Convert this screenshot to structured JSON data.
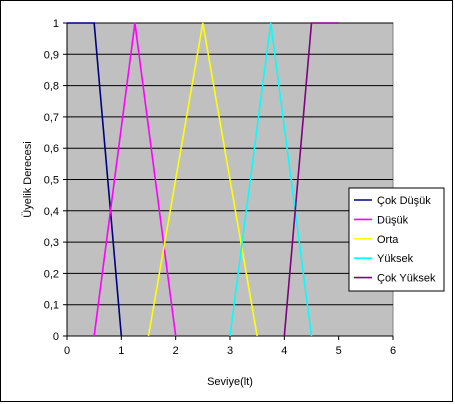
{
  "chart_data": {
    "type": "line",
    "title": "",
    "xlabel": "Seviye(lt)",
    "ylabel": "Üyelik Derecesi",
    "xlim": [
      0,
      6
    ],
    "ylim": [
      0,
      1
    ],
    "x_ticks": [
      "0",
      "1",
      "2",
      "3",
      "4",
      "5",
      "6"
    ],
    "y_ticks": [
      "0",
      "0,1",
      "0,2",
      "0,3",
      "0,4",
      "0,5",
      "0,6",
      "0,7",
      "0,8",
      "0,9",
      "1"
    ],
    "grid": "horizontal",
    "plot_background": "#c0c0c0",
    "legend_position": "right",
    "series": [
      {
        "name": "Çok Düşük",
        "color": "#000080",
        "x": [
          0,
          0.5,
          1.0
        ],
        "y": [
          1,
          1,
          0
        ]
      },
      {
        "name": "Düşük",
        "color": "#ff00ff",
        "x": [
          0.5,
          1.25,
          2.0
        ],
        "y": [
          0,
          1,
          0
        ]
      },
      {
        "name": "Orta",
        "color": "#ffff00",
        "x": [
          1.5,
          2.5,
          3.5
        ],
        "y": [
          0,
          1,
          0
        ]
      },
      {
        "name": "Yüksek",
        "color": "#00ffff",
        "x": [
          3.0,
          3.75,
          4.5
        ],
        "y": [
          0,
          1,
          0
        ]
      },
      {
        "name": "Çok Yüksek",
        "color": "#800080",
        "x": [
          4.0,
          4.5,
          5.0
        ],
        "y": [
          0,
          1,
          1
        ]
      }
    ]
  }
}
